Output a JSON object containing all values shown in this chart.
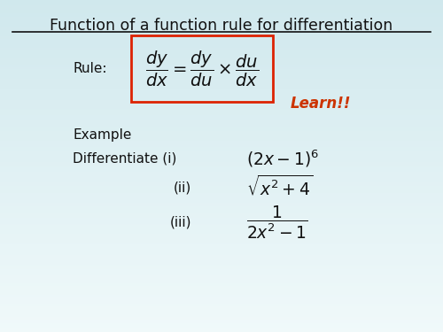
{
  "title": "Function of a function rule for differentiation",
  "bg_color_top": "#e8f4f6",
  "bg_color_bottom": "#f5fbfc",
  "rule_label": "Rule:",
  "learn_text": "Learn!!",
  "learn_color": "#cc3300",
  "example_label": "Example",
  "diff_label": "Differentiate",
  "box_color": "#dd2200",
  "title_color": "#111111",
  "text_color": "#111111"
}
